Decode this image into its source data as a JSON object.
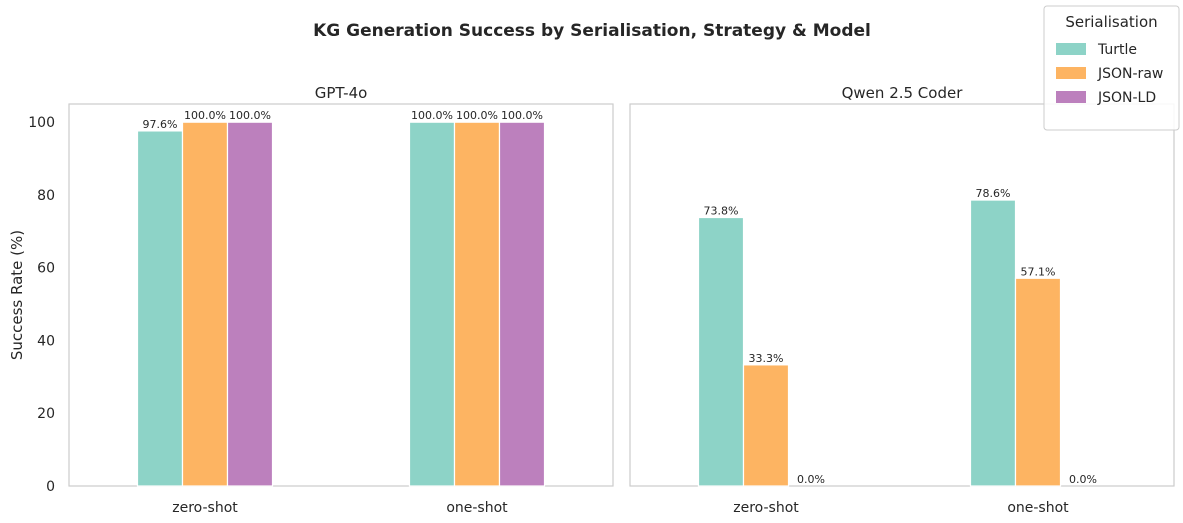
{
  "chart_data": {
    "type": "bar",
    "title": "KG Generation Success by Serialisation, Strategy & Model",
    "ylabel": "Success Rate (%)",
    "xlabel": "",
    "ylim": [
      0,
      105
    ],
    "yticks": [
      0,
      20,
      40,
      60,
      80,
      100
    ],
    "categories": [
      "zero-shot",
      "one-shot"
    ],
    "legend": {
      "title": "Serialisation",
      "placement": "upper-right",
      "entries": [
        "Turtle",
        "JSON-raw",
        "JSON-LD"
      ]
    },
    "colors": {
      "Turtle": "#8dd3c7",
      "JSON-raw": "#fdb462",
      "JSON-LD": "#bc80bd"
    },
    "grid": false,
    "panels": [
      {
        "title": "GPT-4o",
        "series": [
          {
            "name": "Turtle",
            "values": [
              97.6,
              100.0
            ],
            "labels": [
              "97.6%",
              "100.0%"
            ]
          },
          {
            "name": "JSON-raw",
            "values": [
              100.0,
              100.0
            ],
            "labels": [
              "100.0%",
              "100.0%"
            ]
          },
          {
            "name": "JSON-LD",
            "values": [
              100.0,
              100.0
            ],
            "labels": [
              "100.0%",
              "100.0%"
            ]
          }
        ]
      },
      {
        "title": "Qwen 2.5 Coder",
        "series": [
          {
            "name": "Turtle",
            "values": [
              73.8,
              78.6
            ],
            "labels": [
              "73.8%",
              "78.6%"
            ]
          },
          {
            "name": "JSON-raw",
            "values": [
              33.3,
              57.1
            ],
            "labels": [
              "33.3%",
              "57.1%"
            ]
          },
          {
            "name": "JSON-LD",
            "values": [
              0.0,
              0.0
            ],
            "labels": [
              "0.0%",
              "0.0%"
            ]
          }
        ]
      }
    ]
  }
}
